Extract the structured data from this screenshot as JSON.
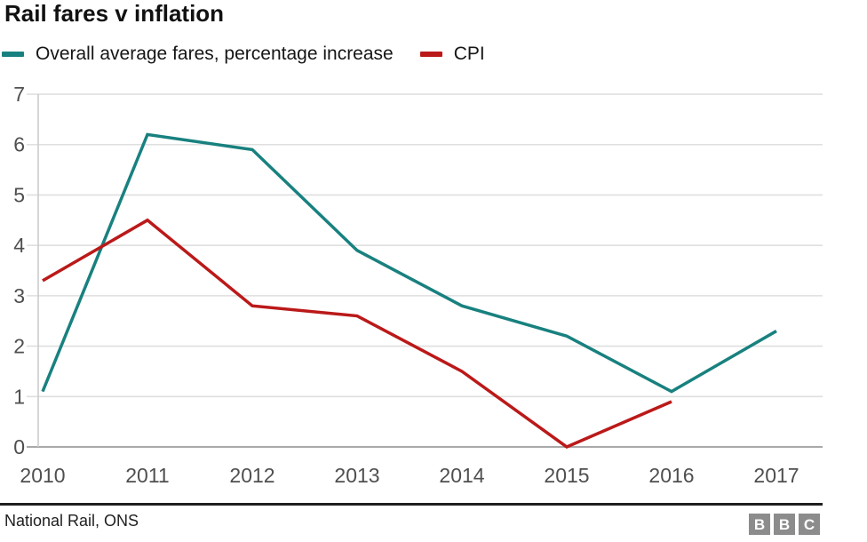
{
  "title": "Rail fares v inflation",
  "legend": {
    "items": [
      {
        "label": "Overall average fares, percentage increase",
        "color": "#18817f"
      },
      {
        "label": "CPI",
        "color": "#bb1919"
      }
    ]
  },
  "footer": {
    "source": "National Rail, ONS",
    "logo": {
      "letters": [
        "B",
        "B",
        "C"
      ]
    }
  },
  "colors": {
    "grid": "#dfdfdf",
    "baseline": "#a9a9a9",
    "axis_line": "#cccccc",
    "tick_label": "#4f4f4f",
    "fares_line": "#18817f",
    "cpi_line": "#bb1919",
    "logo_bg": "#8c8c8c"
  },
  "chart_data": {
    "type": "line",
    "title": "Rail fares v inflation",
    "x": [
      2010,
      2011,
      2012,
      2013,
      2014,
      2015,
      2016,
      2017
    ],
    "series": [
      {
        "name": "Overall average fares, percentage increase",
        "color": "#18817f",
        "values": [
          1.1,
          6.2,
          5.9,
          3.9,
          2.8,
          2.2,
          1.1,
          2.3
        ]
      },
      {
        "name": "CPI",
        "color": "#bb1919",
        "values": [
          3.3,
          4.5,
          2.8,
          2.6,
          1.5,
          0.0,
          0.9,
          null
        ]
      }
    ],
    "xlabel": "",
    "ylabel": "",
    "ylim": [
      0,
      7
    ],
    "yticks": [
      0,
      1,
      2,
      3,
      4,
      5,
      6,
      7
    ],
    "grid": true,
    "legend_position": "top",
    "source": "National Rail, ONS"
  }
}
